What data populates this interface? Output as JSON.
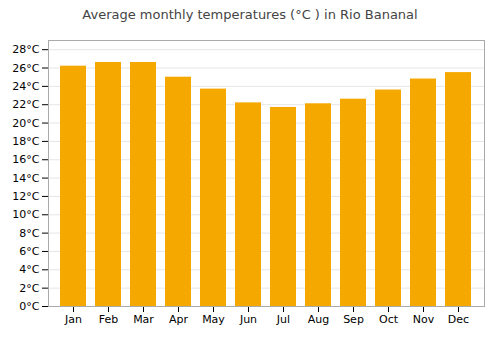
{
  "chart_data": {
    "type": "bar",
    "title": "Average monthly temperatures (°C ) in Rio Bananal",
    "categories": [
      "Jan",
      "Feb",
      "Mar",
      "Apr",
      "May",
      "Jun",
      "Jul",
      "Aug",
      "Sep",
      "Oct",
      "Nov",
      "Dec"
    ],
    "values": [
      26.2,
      26.6,
      26.6,
      25.0,
      23.7,
      22.2,
      21.7,
      22.1,
      22.6,
      23.6,
      24.8,
      25.5
    ],
    "color": "#F5A800",
    "ylim": [
      0,
      29
    ],
    "yticks": [
      {
        "value": 0,
        "label": "0°C"
      },
      {
        "value": 2,
        "label": "2°C"
      },
      {
        "value": 4,
        "label": "4°C"
      },
      {
        "value": 6,
        "label": "6°C"
      },
      {
        "value": 8,
        "label": "8°C"
      },
      {
        "value": 10,
        "label": "10°C"
      },
      {
        "value": 12,
        "label": "12°C"
      },
      {
        "value": 14,
        "label": "14°C"
      },
      {
        "value": 16,
        "label": "16°C"
      },
      {
        "value": 18,
        "label": "18°C"
      },
      {
        "value": 20,
        "label": "20°C"
      },
      {
        "value": 22,
        "label": "22°C"
      },
      {
        "value": 24,
        "label": "24°C"
      },
      {
        "value": 26,
        "label": "26°C"
      },
      {
        "value": 28,
        "label": "28°C"
      }
    ],
    "grid": true
  }
}
